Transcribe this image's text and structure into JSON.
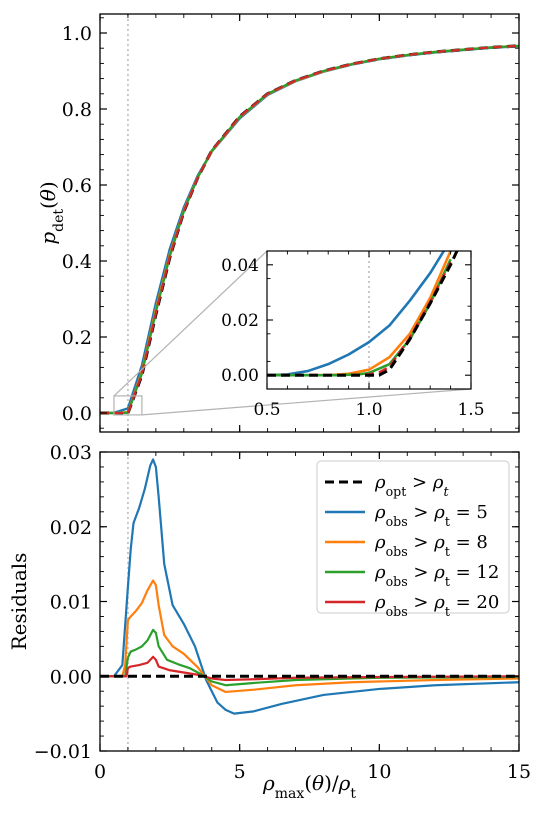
{
  "chart_data": [
    {
      "type": "line",
      "ylabel": "p_det(θ)",
      "ylabel_parts": {
        "base": "p",
        "sub": "det",
        "arg": "(θ)"
      },
      "xlim": [
        0,
        15
      ],
      "ylim": [
        -0.05,
        1.05
      ],
      "yticks": [
        0.0,
        0.2,
        0.4,
        0.6,
        0.8,
        1.0
      ],
      "ytick_labels": [
        "0.0",
        "0.2",
        "0.4",
        "0.6",
        "0.8",
        "1.0"
      ],
      "vline_x": 1,
      "series": [
        {
          "name": "ρ_opt > ρ_t",
          "color": "#000000",
          "style": "dashed",
          "x": [
            0,
            0.5,
            1,
            1.5,
            2,
            2.5,
            3,
            3.5,
            4,
            5,
            6,
            7,
            8,
            9,
            10,
            11,
            12,
            13,
            14,
            15
          ],
          "y": [
            0,
            0,
            0,
            0.1,
            0.26,
            0.41,
            0.53,
            0.62,
            0.69,
            0.78,
            0.84,
            0.875,
            0.9,
            0.918,
            0.932,
            0.942,
            0.95,
            0.956,
            0.962,
            0.966
          ]
        },
        {
          "name": "ρ_obs > ρ_t = 5",
          "color": "#1f77b4",
          "style": "solid",
          "x": [
            0,
            0.5,
            1,
            1.5,
            2,
            2.5,
            3,
            3.5,
            4,
            5,
            6,
            7,
            8,
            9,
            10,
            11,
            12,
            13,
            14,
            15
          ],
          "y": [
            0,
            0.0005,
            0.012,
            0.125,
            0.289,
            0.432,
            0.541,
            0.625,
            0.688,
            0.775,
            0.837,
            0.873,
            0.898,
            0.917,
            0.931,
            0.941,
            0.949,
            0.955,
            0.961,
            0.965
          ]
        },
        {
          "name": "ρ_obs > ρ_t = 8",
          "color": "#ff7f0e",
          "style": "solid",
          "x": [
            0,
            0.5,
            1,
            1.5,
            2,
            2.5,
            3,
            3.5,
            4,
            5,
            6,
            7,
            8,
            9,
            10,
            11,
            12,
            13,
            14,
            15
          ],
          "y": [
            0,
            0,
            0.002,
            0.109,
            0.273,
            0.418,
            0.533,
            0.621,
            0.689,
            0.778,
            0.839,
            0.874,
            0.899,
            0.918,
            0.932,
            0.942,
            0.95,
            0.956,
            0.962,
            0.966
          ]
        },
        {
          "name": "ρ_obs > ρ_t = 12",
          "color": "#2ca02c",
          "style": "solid",
          "x": [
            0,
            0.5,
            1,
            1.5,
            2,
            2.5,
            3,
            3.5,
            4,
            5,
            6,
            7,
            8,
            9,
            10,
            11,
            12,
            13,
            14,
            15
          ],
          "y": [
            0,
            0,
            0.0008,
            0.104,
            0.266,
            0.413,
            0.531,
            0.62,
            0.69,
            0.779,
            0.84,
            0.875,
            0.9,
            0.918,
            0.932,
            0.942,
            0.95,
            0.956,
            0.962,
            0.966
          ]
        },
        {
          "name": "ρ_obs > ρ_t = 20",
          "color": "#d62728",
          "style": "dashed",
          "x": [
            0,
            0.5,
            1,
            1.5,
            2,
            2.5,
            3,
            3.5,
            4,
            5,
            6,
            7,
            8,
            9,
            10,
            11,
            12,
            13,
            14,
            15
          ],
          "y": [
            0,
            0,
            0.0003,
            0.102,
            0.262,
            0.411,
            0.53,
            0.62,
            0.69,
            0.78,
            0.84,
            0.875,
            0.9,
            0.918,
            0.932,
            0.942,
            0.95,
            0.956,
            0.962,
            0.966
          ]
        }
      ]
    },
    {
      "type": "line",
      "role": "inset",
      "xlim": [
        0.5,
        1.5
      ],
      "ylim": [
        -0.005,
        0.045
      ],
      "xticks": [
        0.5,
        1.0,
        1.5
      ],
      "xtick_labels": [
        "0.5",
        "1.0",
        "1.5"
      ],
      "yticks": [
        0.0,
        0.02,
        0.04
      ],
      "ytick_labels": [
        "0.00",
        "0.02",
        "0.04"
      ],
      "vline_x": 1,
      "series": [
        {
          "name": "ρ_opt > ρ_t",
          "color": "#000000",
          "style": "dashed",
          "x": [
            0.5,
            1.0,
            1.05,
            1.1,
            1.2,
            1.3,
            1.4,
            1.5
          ],
          "y": [
            0,
            0,
            0,
            0.002,
            0.013,
            0.026,
            0.04,
            0.056
          ]
        },
        {
          "name": "ρ_obs > ρ_t = 5",
          "color": "#1f77b4",
          "style": "solid",
          "x": [
            0.5,
            0.6,
            0.7,
            0.8,
            0.9,
            1.0,
            1.1,
            1.2,
            1.3,
            1.4
          ],
          "y": [
            0,
            0.0003,
            0.0015,
            0.004,
            0.0075,
            0.012,
            0.018,
            0.027,
            0.037,
            0.049
          ]
        },
        {
          "name": "ρ_obs > ρ_t = 8",
          "color": "#ff7f0e",
          "style": "solid",
          "x": [
            0.5,
            0.8,
            0.9,
            1.0,
            1.1,
            1.2,
            1.3,
            1.4
          ],
          "y": [
            0,
            0,
            0.0005,
            0.002,
            0.0065,
            0.015,
            0.028,
            0.045
          ]
        },
        {
          "name": "ρ_obs > ρ_t = 12",
          "color": "#2ca02c",
          "style": "solid",
          "x": [
            0.5,
            0.85,
            0.95,
            1.0,
            1.1,
            1.2,
            1.3,
            1.4
          ],
          "y": [
            0,
            0,
            0.0003,
            0.0008,
            0.004,
            0.013,
            0.026,
            0.042
          ]
        },
        {
          "name": "ρ_obs > ρ_t = 20",
          "color": "#d62728",
          "style": "dashed",
          "x": [
            0.5,
            0.9,
            1.0,
            1.05,
            1.1,
            1.2,
            1.3,
            1.4
          ],
          "y": [
            0,
            0,
            0.0003,
            0.001,
            0.003,
            0.0135,
            0.0265,
            0.041
          ]
        }
      ]
    },
    {
      "type": "line",
      "ylabel": "Residuals",
      "xlabel": "ρ_max(θ)/ρ_t",
      "xlabel_parts": {
        "base": "ρ",
        "sub": "max",
        "mid": "(θ)/",
        "base2": "ρ",
        "sub2": "t"
      },
      "xlim": [
        0,
        15
      ],
      "ylim": [
        -0.01,
        0.03
      ],
      "xticks": [
        0,
        5,
        10,
        15
      ],
      "xtick_labels": [
        "0",
        "5",
        "10",
        "15"
      ],
      "yticks": [
        -0.01,
        0.0,
        0.01,
        0.02,
        0.03
      ],
      "ytick_labels": [
        "−0.01",
        "0.00",
        "0.01",
        "0.02",
        "0.03"
      ],
      "vline_x": 1,
      "legend": "top-right",
      "series": [
        {
          "name": "ρ_opt > ρ_t",
          "legend_parts": {
            "sub": "opt",
            "rhs": "ρ",
            "rhs_sub": "t",
            "rhs_italic_sub": true,
            "value": ""
          },
          "color": "#000000",
          "style": "dashed",
          "x": [
            0,
            15
          ],
          "y": [
            0,
            0
          ]
        },
        {
          "name": "ρ_obs > ρ_t = 5",
          "legend_parts": {
            "sub": "obs",
            "rhs": "ρ",
            "rhs_sub": "t",
            "rhs_italic_sub": false,
            "value": " = 5"
          },
          "color": "#1f77b4",
          "style": "solid",
          "x": [
            0,
            0.5,
            0.8,
            1.0,
            1.1,
            1.2,
            1.4,
            1.6,
            1.8,
            1.9,
            2.0,
            2.1,
            2.3,
            2.6,
            3.0,
            3.4,
            3.8,
            4.2,
            4.5,
            4.8,
            5.5,
            6.5,
            8,
            10,
            12,
            15
          ],
          "y": [
            0,
            0,
            0.0015,
            0.012,
            0.017,
            0.0205,
            0.0225,
            0.025,
            0.0282,
            0.029,
            0.028,
            0.024,
            0.015,
            0.0095,
            0.007,
            0.004,
            -0.0005,
            -0.0035,
            -0.0045,
            -0.005,
            -0.0047,
            -0.0037,
            -0.0025,
            -0.0017,
            -0.0012,
            -0.0008
          ]
        },
        {
          "name": "ρ_obs > ρ_t = 8",
          "legend_parts": {
            "sub": "obs",
            "rhs": "ρ",
            "rhs_sub": "t",
            "rhs_italic_sub": false,
            "value": " = 8"
          },
          "color": "#ff7f0e",
          "style": "solid",
          "x": [
            0,
            0.8,
            0.9,
            1.0,
            1.1,
            1.3,
            1.5,
            1.7,
            1.9,
            2.0,
            2.1,
            2.3,
            2.6,
            3.0,
            3.5,
            4.0,
            4.5,
            5.5,
            7,
            9,
            12,
            15
          ],
          "y": [
            0,
            0,
            0.0015,
            0.0075,
            0.008,
            0.0088,
            0.0098,
            0.0115,
            0.0128,
            0.0122,
            0.0095,
            0.0055,
            0.004,
            0.003,
            0.0012,
            -0.0012,
            -0.0021,
            -0.0018,
            -0.0012,
            -0.0008,
            -0.0005,
            -0.0003
          ]
        },
        {
          "name": "ρ_obs > ρ_t = 12",
          "legend_parts": {
            "sub": "obs",
            "rhs": "ρ",
            "rhs_sub": "t",
            "rhs_italic_sub": false,
            "value": " = 12"
          },
          "color": "#2ca02c",
          "style": "solid",
          "x": [
            0,
            0.9,
            1.0,
            1.1,
            1.3,
            1.5,
            1.7,
            1.9,
            2.0,
            2.1,
            2.4,
            2.8,
            3.2,
            3.6,
            4.0,
            4.5,
            5.5,
            7,
            10,
            15
          ],
          "y": [
            0,
            0,
            0.0025,
            0.0033,
            0.0036,
            0.004,
            0.0048,
            0.0062,
            0.0058,
            0.004,
            0.0022,
            0.0016,
            0.0011,
            0.0003,
            -0.0007,
            -0.0012,
            -0.0009,
            -0.0005,
            -0.0002,
            -0.0001
          ]
        },
        {
          "name": "ρ_obs > ρ_t = 20",
          "legend_parts": {
            "sub": "obs",
            "rhs": "ρ",
            "rhs_sub": "t",
            "rhs_italic_sub": false,
            "value": " = 20"
          },
          "color": "#d62728",
          "style": "solid",
          "x": [
            0,
            0.95,
            1.0,
            1.1,
            1.4,
            1.7,
            1.9,
            2.0,
            2.1,
            2.5,
            3.0,
            3.5,
            4.0,
            4.5,
            5.5,
            7,
            10,
            15
          ],
          "y": [
            0,
            0,
            0.0011,
            0.0013,
            0.0015,
            0.0018,
            0.0026,
            0.0022,
            0.0013,
            0.0008,
            0.0005,
            0.0002,
            -0.0003,
            -0.0005,
            -0.0004,
            -0.0002,
            -0.0001,
            0
          ]
        }
      ]
    }
  ]
}
